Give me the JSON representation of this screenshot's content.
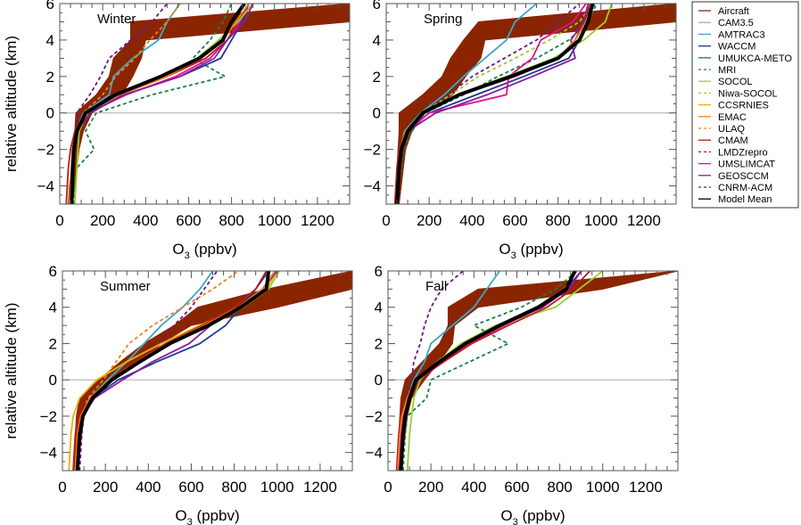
{
  "chart_data": {
    "type": "line",
    "title": "",
    "xlabel": "O3 (ppbv)",
    "ylabel": "relative altitude (km)",
    "xlim": [
      0,
      1350
    ],
    "ylim": [
      -5,
      6
    ],
    "xticks": [
      "0",
      "200",
      "400",
      "600",
      "800",
      "1000",
      "1200"
    ],
    "yticks": [
      "-4",
      "-2",
      "0",
      "2",
      "4",
      "6"
    ],
    "legend_position": "right",
    "altitudes": [
      -5,
      -4,
      -3,
      -2,
      -1,
      0,
      1,
      2,
      3,
      4,
      5,
      6
    ],
    "legend": [
      {
        "name": "Aircraft",
        "color": "#8b2500",
        "dash": false
      },
      {
        "name": "CAM3.5",
        "color": "#d98ad0",
        "dash": false
      },
      {
        "name": "AMTRAC3",
        "color": "#3aa8c8",
        "dash": false
      },
      {
        "name": "WACCM",
        "color": "#1f3b8f",
        "dash": false
      },
      {
        "name": "UMUKCA-METO",
        "color": "#16804a",
        "dash": false
      },
      {
        "name": "MRI",
        "color": "#16804a",
        "dash": true
      },
      {
        "name": "SOCOL",
        "color": "#9acd32",
        "dash": false
      },
      {
        "name": "Niwa-SOCOL",
        "color": "#9acd32",
        "dash": true
      },
      {
        "name": "CCSRNIES",
        "color": "#e8b400",
        "dash": false
      },
      {
        "name": "EMAC",
        "color": "#f08020",
        "dash": false
      },
      {
        "name": "ULAQ",
        "color": "#f08020",
        "dash": true
      },
      {
        "name": "CMAM",
        "color": "#c01818",
        "dash": false
      },
      {
        "name": "LMDZrepro",
        "color": "#c01818",
        "dash": true
      },
      {
        "name": "UMSLIMCAT",
        "color": "#e0108c",
        "dash": false
      },
      {
        "name": "GEOSCCM",
        "color": "#8a1aa0",
        "dash": false
      },
      {
        "name": "CNRM-ACM",
        "color": "#6a1a80",
        "dash": true
      },
      {
        "name": "Model Mean",
        "color": "#000000",
        "dash": false
      }
    ],
    "panels": [
      {
        "season": "Winter",
        "aircraft_low": [
          40,
          45,
          55,
          60,
          70,
          75,
          170,
          230,
          250,
          330,
          330,
          1350
        ],
        "aircraft_high": [
          60,
          70,
          80,
          90,
          110,
          150,
          290,
          340,
          380,
          400,
          1350,
          1350
        ],
        "series": {
          "Model Mean": [
            55,
            58,
            60,
            65,
            80,
            120,
            260,
            470,
            650,
            760,
            800,
            860
          ],
          "AMTRAC3": [
            50,
            55,
            60,
            65,
            75,
            110,
            230,
            250,
            340,
            460,
            500,
            560
          ],
          "MRI": [
            65,
            70,
            80,
            160,
            120,
            170,
            430,
            770,
            620,
            700,
            760,
            800
          ],
          "CNRM-ACM": [
            55,
            55,
            60,
            65,
            80,
            80,
            140,
            190,
            230,
            330,
            430,
            500
          ],
          "ULAQ": [
            50,
            55,
            60,
            65,
            80,
            110,
            200,
            260,
            350,
            420,
            500,
            560
          ],
          "WACCM": [
            55,
            60,
            65,
            70,
            85,
            140,
            300,
            560,
            750,
            800,
            850,
            880
          ],
          "UMSLIMCAT": [
            50,
            55,
            60,
            65,
            80,
            130,
            310,
            540,
            700,
            780,
            840,
            880
          ],
          "CMAM": [
            30,
            35,
            40,
            50,
            70,
            120,
            280,
            500,
            680,
            780,
            830,
            900
          ],
          "SOCOL": [
            70,
            75,
            80,
            85,
            90,
            130,
            280,
            480,
            640,
            740,
            830,
            900
          ],
          "GEOSCCM": [
            55,
            60,
            65,
            70,
            80,
            140,
            300,
            560,
            720,
            780,
            860,
            900
          ],
          "EMAC": [
            45,
            50,
            55,
            60,
            75,
            120,
            280,
            500,
            650,
            760,
            820,
            880
          ]
        }
      },
      {
        "season": "Spring",
        "aircraft_low": [
          40,
          45,
          50,
          55,
          60,
          60,
          170,
          260,
          300,
          360,
          430,
          1350
        ],
        "aircraft_high": [
          60,
          70,
          80,
          90,
          120,
          180,
          310,
          370,
          440,
          460,
          1350,
          1350
        ],
        "series": {
          "Model Mean": [
            50,
            55,
            60,
            70,
            100,
            170,
            340,
            580,
            800,
            900,
            940,
            960
          ],
          "AMTRAC3": [
            45,
            50,
            55,
            65,
            85,
            160,
            270,
            360,
            460,
            560,
            600,
            700
          ],
          "MRI": [
            55,
            60,
            70,
            80,
            120,
            180,
            360,
            520,
            700,
            850,
            940,
            980
          ],
          "CNRM-ACM": [
            55,
            60,
            65,
            75,
            100,
            180,
            290,
            400,
            550,
            700,
            800,
            900
          ],
          "Niwa-SOCOL": [
            50,
            55,
            60,
            70,
            90,
            170,
            300,
            430,
            600,
            760,
            900,
            960
          ],
          "WACCM": [
            50,
            55,
            60,
            70,
            100,
            200,
            420,
            640,
            850,
            900,
            930,
            970
          ],
          "UMSLIMCAT": [
            45,
            50,
            55,
            65,
            95,
            200,
            560,
            570,
            680,
            720,
            870,
            930
          ],
          "CMAM": [
            40,
            45,
            50,
            60,
            90,
            170,
            350,
            600,
            800,
            880,
            920,
            950
          ],
          "SOCOL": [
            50,
            55,
            60,
            70,
            100,
            170,
            330,
            560,
            780,
            920,
            1020,
            1050
          ],
          "GEOSCCM": [
            50,
            55,
            60,
            70,
            100,
            230,
            470,
            680,
            880,
            860,
            920,
            940
          ],
          "EMAC": [
            45,
            50,
            55,
            65,
            90,
            170,
            340,
            580,
            800,
            880,
            930,
            960
          ]
        }
      },
      {
        "season": "Summer",
        "aircraft_low": [
          50,
          55,
          60,
          65,
          80,
          170,
          270,
          380,
          520,
          630,
          950,
          1350
        ],
        "aircraft_high": [
          70,
          80,
          90,
          100,
          120,
          210,
          360,
          460,
          600,
          1000,
          1350,
          1350
        ],
        "series": {
          "Model Mean": [
            70,
            75,
            80,
            95,
            140,
            230,
            360,
            500,
            680,
            830,
            950,
            960
          ],
          "AMTRAC3": [
            60,
            65,
            75,
            90,
            130,
            210,
            300,
            380,
            460,
            560,
            640,
            700
          ],
          "CNRM-ACM": [
            80,
            85,
            90,
            100,
            140,
            230,
            350,
            450,
            520,
            600,
            660,
            720
          ],
          "ULAQ": [
            60,
            65,
            70,
            85,
            120,
            190,
            250,
            310,
            420,
            560,
            700,
            820
          ],
          "WACCM": [
            70,
            75,
            80,
            95,
            140,
            260,
            440,
            640,
            760,
            830,
            900,
            960
          ],
          "CCSRNIES": [
            30,
            35,
            40,
            50,
            80,
            160,
            300,
            460,
            640,
            820,
            950,
            1000
          ],
          "GEOSCCM": [
            70,
            75,
            80,
            95,
            150,
            280,
            420,
            590,
            690,
            830,
            930,
            1000
          ],
          "CMAM": [
            50,
            55,
            60,
            75,
            130,
            220,
            340,
            480,
            650,
            800,
            900,
            950
          ],
          "EMAC": [
            60,
            65,
            70,
            85,
            130,
            220,
            350,
            490,
            660,
            820,
            930,
            990
          ],
          "SOCOL": [
            70,
            75,
            80,
            95,
            140,
            230,
            370,
            510,
            690,
            840,
            960,
            1010
          ]
        }
      },
      {
        "season": "Fall",
        "aircraft_low": [
          40,
          45,
          50,
          55,
          60,
          80,
          160,
          240,
          280,
          280,
          420,
          1350
        ],
        "aircraft_high": [
          60,
          70,
          80,
          90,
          110,
          170,
          240,
          300,
          310,
          420,
          1000,
          1350
        ],
        "series": {
          "Model Mean": [
            60,
            65,
            70,
            80,
            100,
            130,
            240,
            360,
            520,
            700,
            830,
            870
          ],
          "AMTRAC3": [
            50,
            55,
            60,
            70,
            90,
            120,
            170,
            200,
            300,
            400,
            460,
            520
          ],
          "MRI": [
            70,
            75,
            80,
            90,
            180,
            200,
            380,
            560,
            400,
            620,
            780,
            880
          ],
          "CNRM-ACM": [
            60,
            65,
            70,
            80,
            90,
            110,
            120,
            150,
            170,
            200,
            250,
            350
          ],
          "SOCOL": [
            90,
            95,
            100,
            110,
            120,
            150,
            230,
            340,
            500,
            780,
            890,
            1000
          ],
          "WACCM": [
            55,
            60,
            65,
            75,
            95,
            130,
            250,
            370,
            530,
            700,
            830,
            900
          ],
          "UMSLIMCAT": [
            50,
            55,
            60,
            70,
            100,
            140,
            260,
            380,
            540,
            710,
            840,
            900
          ],
          "CMAM": [
            40,
            45,
            50,
            60,
            90,
            130,
            260,
            390,
            560,
            740,
            860,
            940
          ],
          "EMAC": [
            45,
            50,
            55,
            65,
            90,
            125,
            240,
            360,
            520,
            690,
            820,
            880
          ],
          "GEOSCCM": [
            60,
            65,
            70,
            80,
            100,
            140,
            250,
            370,
            530,
            720,
            840,
            900
          ]
        }
      }
    ]
  }
}
